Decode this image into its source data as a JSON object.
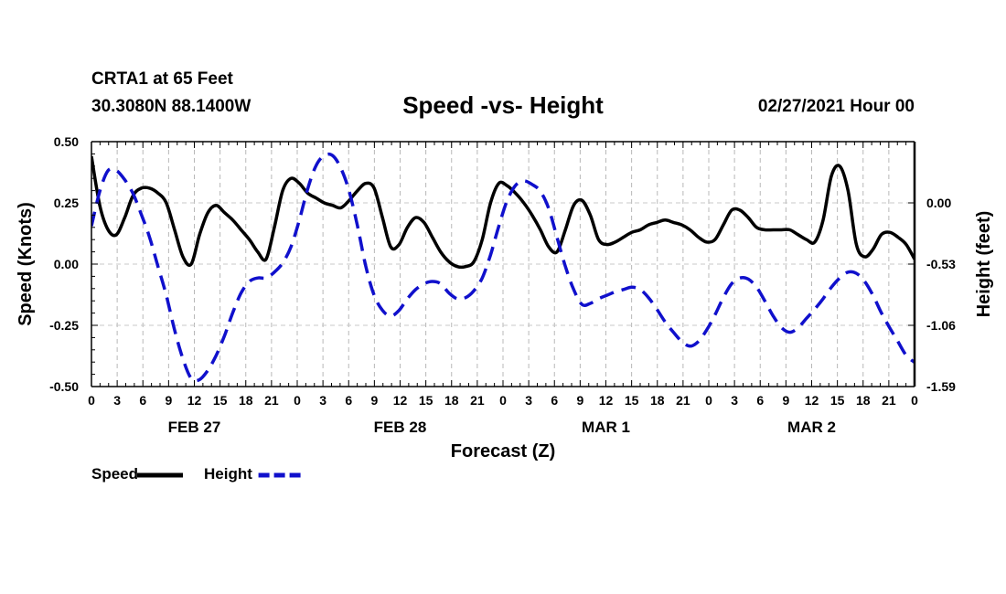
{
  "header": {
    "station": "CRTA1 at 65 Feet",
    "coords": "30.3080N 88.1400W",
    "title": "Speed -vs- Height",
    "run": "02/27/2021 Hour 00"
  },
  "chart_data": {
    "type": "line",
    "title": "Speed -vs- Height",
    "xlabel": "Forecast (Z)",
    "ylabel_left": "Speed (Knots)",
    "ylabel_right": "Height (feet)",
    "xlim_hours": [
      0,
      96
    ],
    "ylim_left": [
      -0.5,
      0.5
    ],
    "ylim_right": [
      -1.59,
      0.53
    ],
    "left_ticks": [
      "0.50",
      "0.25",
      "0.00",
      "-0.25",
      "-0.50"
    ],
    "left_tick_values": [
      0.5,
      0.25,
      0.0,
      -0.25,
      -0.5
    ],
    "right_ticks": [
      "0.00",
      "-0.53",
      "-1.06",
      "-1.59"
    ],
    "right_tick_values": [
      0.0,
      -0.53,
      -1.06,
      -1.59
    ],
    "x_tick_labels": [
      "0",
      "3",
      "6",
      "9",
      "12",
      "15",
      "18",
      "21",
      "0",
      "3",
      "6",
      "9",
      "12",
      "15",
      "18",
      "21",
      "0",
      "3",
      "6",
      "9",
      "12",
      "15",
      "18",
      "21",
      "0",
      "3",
      "6",
      "9",
      "12",
      "15",
      "18",
      "21",
      "0"
    ],
    "day_labels": [
      {
        "label": "FEB 27",
        "hour": 12
      },
      {
        "label": "FEB 28",
        "hour": 36
      },
      {
        "label": "MAR 1",
        "hour": 60
      },
      {
        "label": "MAR 2",
        "hour": 84
      }
    ],
    "grid": true,
    "legend_position": "bottom-left",
    "series": [
      {
        "name": "Speed",
        "axis": "left",
        "color": "#000000",
        "dash": "solid",
        "points": [
          [
            0,
            0.44
          ],
          [
            1,
            0.24
          ],
          [
            2,
            0.14
          ],
          [
            3,
            0.12
          ],
          [
            4,
            0.19
          ],
          [
            5,
            0.28
          ],
          [
            6,
            0.31
          ],
          [
            7,
            0.31
          ],
          [
            8,
            0.29
          ],
          [
            9,
            0.25
          ],
          [
            10,
            0.14
          ],
          [
            11,
            0.03
          ],
          [
            12,
            0.0
          ],
          [
            13,
            0.12
          ],
          [
            14,
            0.21
          ],
          [
            15,
            0.24
          ],
          [
            16,
            0.21
          ],
          [
            17,
            0.18
          ],
          [
            18,
            0.14
          ],
          [
            19,
            0.1
          ],
          [
            20,
            0.05
          ],
          [
            21,
            0.02
          ],
          [
            22,
            0.15
          ],
          [
            23,
            0.3
          ],
          [
            24,
            0.35
          ],
          [
            25,
            0.33
          ],
          [
            26,
            0.29
          ],
          [
            27,
            0.27
          ],
          [
            28,
            0.25
          ],
          [
            29,
            0.24
          ],
          [
            30,
            0.23
          ],
          [
            31,
            0.26
          ],
          [
            32,
            0.3
          ],
          [
            33,
            0.33
          ],
          [
            34,
            0.31
          ],
          [
            35,
            0.19
          ],
          [
            36,
            0.07
          ],
          [
            37,
            0.08
          ],
          [
            38,
            0.15
          ],
          [
            39,
            0.19
          ],
          [
            40,
            0.17
          ],
          [
            41,
            0.11
          ],
          [
            42,
            0.05
          ],
          [
            43,
            0.01
          ],
          [
            44,
            -0.01
          ],
          [
            45,
            -0.01
          ],
          [
            46,
            0.01
          ],
          [
            47,
            0.1
          ],
          [
            48,
            0.25
          ],
          [
            49,
            0.33
          ],
          [
            50,
            0.32
          ],
          [
            51,
            0.29
          ],
          [
            52,
            0.25
          ],
          [
            53,
            0.2
          ],
          [
            54,
            0.14
          ],
          [
            55,
            0.07
          ],
          [
            56,
            0.05
          ],
          [
            57,
            0.14
          ],
          [
            58,
            0.24
          ],
          [
            59,
            0.26
          ],
          [
            60,
            0.2
          ],
          [
            61,
            0.1
          ],
          [
            62,
            0.08
          ],
          [
            63,
            0.09
          ],
          [
            64,
            0.11
          ],
          [
            65,
            0.13
          ],
          [
            66,
            0.14
          ],
          [
            67,
            0.16
          ],
          [
            68,
            0.17
          ],
          [
            69,
            0.18
          ],
          [
            70,
            0.17
          ],
          [
            71,
            0.16
          ],
          [
            72,
            0.14
          ],
          [
            73,
            0.11
          ],
          [
            74,
            0.09
          ],
          [
            75,
            0.1
          ],
          [
            76,
            0.16
          ],
          [
            77,
            0.22
          ],
          [
            78,
            0.22
          ],
          [
            79,
            0.19
          ],
          [
            80,
            0.15
          ],
          [
            81,
            0.14
          ],
          [
            82,
            0.14
          ],
          [
            83,
            0.14
          ],
          [
            84,
            0.14
          ],
          [
            85,
            0.12
          ],
          [
            86,
            0.1
          ],
          [
            87,
            0.09
          ],
          [
            88,
            0.18
          ],
          [
            89,
            0.36
          ],
          [
            90,
            0.4
          ],
          [
            91,
            0.3
          ],
          [
            92,
            0.08
          ],
          [
            93,
            0.03
          ],
          [
            94,
            0.06
          ],
          [
            95,
            0.12
          ],
          [
            96,
            0.13
          ],
          [
            97,
            0.11
          ],
          [
            98,
            0.08
          ],
          [
            99,
            0.02
          ]
        ],
        "note": "points are [hour_offset_from_0Z_Feb27_scaled, value]; x values are in plot hour units 0-96 mapped proportionally"
      },
      {
        "name": "Height",
        "axis": "right",
        "color": "#1010cc",
        "dash": "dashed",
        "points": [
          [
            0,
            -0.2
          ],
          [
            1,
            0.1
          ],
          [
            2,
            0.28
          ],
          [
            3,
            0.28
          ],
          [
            4,
            0.2
          ],
          [
            5,
            0.08
          ],
          [
            6,
            -0.1
          ],
          [
            7,
            -0.3
          ],
          [
            8,
            -0.55
          ],
          [
            9,
            -0.8
          ],
          [
            10,
            -1.1
          ],
          [
            11,
            -1.35
          ],
          [
            12,
            -1.52
          ],
          [
            13,
            -1.53
          ],
          [
            14,
            -1.45
          ],
          [
            15,
            -1.32
          ],
          [
            16,
            -1.15
          ],
          [
            17,
            -0.95
          ],
          [
            18,
            -0.78
          ],
          [
            19,
            -0.68
          ],
          [
            20,
            -0.65
          ],
          [
            21,
            -0.65
          ],
          [
            22,
            -0.6
          ],
          [
            23,
            -0.52
          ],
          [
            24,
            -0.38
          ],
          [
            25,
            -0.15
          ],
          [
            26,
            0.12
          ],
          [
            27,
            0.32
          ],
          [
            28,
            0.41
          ],
          [
            29,
            0.41
          ],
          [
            30,
            0.3
          ],
          [
            31,
            0.1
          ],
          [
            32,
            -0.2
          ],
          [
            33,
            -0.55
          ],
          [
            34,
            -0.8
          ],
          [
            35,
            -0.93
          ],
          [
            36,
            -0.98
          ],
          [
            37,
            -0.93
          ],
          [
            38,
            -0.83
          ],
          [
            39,
            -0.75
          ],
          [
            40,
            -0.7
          ],
          [
            41,
            -0.68
          ],
          [
            42,
            -0.7
          ],
          [
            43,
            -0.78
          ],
          [
            44,
            -0.83
          ],
          [
            45,
            -0.82
          ],
          [
            46,
            -0.76
          ],
          [
            47,
            -0.65
          ],
          [
            48,
            -0.45
          ],
          [
            49,
            -0.2
          ],
          [
            50,
            0.02
          ],
          [
            51,
            0.15
          ],
          [
            52,
            0.19
          ],
          [
            53,
            0.16
          ],
          [
            54,
            0.1
          ],
          [
            55,
            -0.05
          ],
          [
            56,
            -0.3
          ],
          [
            57,
            -0.55
          ],
          [
            58,
            -0.75
          ],
          [
            59,
            -0.88
          ],
          [
            60,
            -0.87
          ],
          [
            61,
            -0.83
          ],
          [
            62,
            -0.8
          ],
          [
            63,
            -0.77
          ],
          [
            64,
            -0.75
          ],
          [
            65,
            -0.73
          ],
          [
            66,
            -0.75
          ],
          [
            67,
            -0.82
          ],
          [
            68,
            -0.92
          ],
          [
            69,
            -1.03
          ],
          [
            70,
            -1.12
          ],
          [
            71,
            -1.2
          ],
          [
            72,
            -1.24
          ],
          [
            73,
            -1.2
          ],
          [
            74,
            -1.1
          ],
          [
            75,
            -0.97
          ],
          [
            76,
            -0.82
          ],
          [
            77,
            -0.7
          ],
          [
            78,
            -0.65
          ],
          [
            79,
            -0.66
          ],
          [
            80,
            -0.73
          ],
          [
            81,
            -0.85
          ],
          [
            82,
            -0.98
          ],
          [
            83,
            -1.08
          ],
          [
            84,
            -1.12
          ],
          [
            85,
            -1.08
          ],
          [
            86,
            -1.0
          ],
          [
            87,
            -0.92
          ],
          [
            88,
            -0.83
          ],
          [
            89,
            -0.73
          ],
          [
            90,
            -0.65
          ],
          [
            91,
            -0.6
          ],
          [
            92,
            -0.61
          ],
          [
            93,
            -0.68
          ],
          [
            94,
            -0.8
          ],
          [
            95,
            -0.95
          ],
          [
            96,
            -1.08
          ],
          [
            97,
            -1.2
          ],
          [
            98,
            -1.32
          ],
          [
            99,
            -1.38
          ]
        ]
      }
    ],
    "legend": [
      {
        "label": "Speed",
        "series": "Speed"
      },
      {
        "label": "Height",
        "series": "Height"
      }
    ]
  }
}
